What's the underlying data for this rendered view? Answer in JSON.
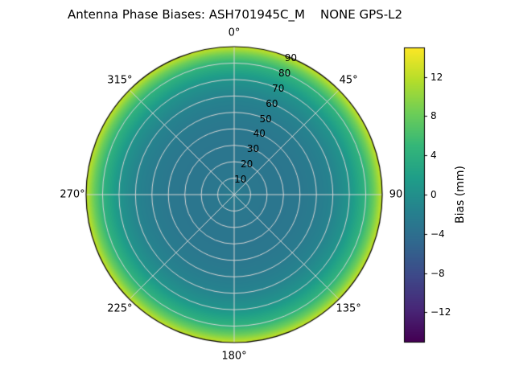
{
  "title": "Antenna Phase Biases: ASH701945C_M    NONE GPS-L2",
  "chart_data": {
    "type": "heatmap",
    "projection": "polar",
    "title": "Antenna Phase Biases: ASH701945C_M    NONE GPS-L2",
    "grid": true,
    "grid_color": "#d4d4d4",
    "radial_range": [
      0,
      90
    ],
    "radial_tick_azimuth_deg": 22.5,
    "angle_ticks": [
      {
        "angle": 0,
        "label": "0°"
      },
      {
        "angle": 45,
        "label": "45°"
      },
      {
        "angle": 90,
        "label": "90"
      },
      {
        "angle": 135,
        "label": "135°"
      },
      {
        "angle": 180,
        "label": "180°"
      },
      {
        "angle": 225,
        "label": "225°"
      },
      {
        "angle": 270,
        "label": "270°"
      },
      {
        "angle": 315,
        "label": "315°"
      }
    ],
    "radial_ticks": [
      {
        "r": 10,
        "label": "10"
      },
      {
        "r": 20,
        "label": "20"
      },
      {
        "r": 30,
        "label": "30"
      },
      {
        "r": 40,
        "label": "40"
      },
      {
        "r": 50,
        "label": "50"
      },
      {
        "r": 60,
        "label": "60"
      },
      {
        "r": 70,
        "label": "70"
      },
      {
        "r": 80,
        "label": "80"
      },
      {
        "r": 90,
        "label": "90"
      }
    ],
    "radial_profile": {
      "zenith_angle_deg": [
        0,
        10,
        20,
        30,
        40,
        50,
        60,
        70,
        80,
        85,
        90
      ],
      "bias_mm": [
        -2.5,
        -3.0,
        -3.2,
        -3.2,
        -3.0,
        -2.5,
        -1.5,
        0.5,
        4.5,
        8.0,
        12.5
      ]
    },
    "colorbar": {
      "label": "Bias (mm)",
      "vmin": -15,
      "vmax": 15,
      "colormap": "viridis",
      "colors": [
        "#440154",
        "#482878",
        "#3e4989",
        "#31688e",
        "#26828e",
        "#1f9e89",
        "#35b779",
        "#6ece58",
        "#b5de2b",
        "#fde725"
      ],
      "ticks": [
        {
          "value": 12,
          "label": "12"
        },
        {
          "value": 8,
          "label": "8"
        },
        {
          "value": 4,
          "label": "4"
        },
        {
          "value": 0,
          "label": "0"
        },
        {
          "value": -4,
          "label": "−4"
        },
        {
          "value": -8,
          "label": "−8"
        },
        {
          "value": -12,
          "label": "−12"
        }
      ]
    },
    "background": "#ffffff"
  }
}
